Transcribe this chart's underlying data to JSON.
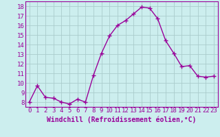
{
  "x": [
    0,
    1,
    2,
    3,
    4,
    5,
    6,
    7,
    8,
    9,
    10,
    11,
    12,
    13,
    14,
    15,
    16,
    17,
    18,
    19,
    20,
    21,
    22,
    23
  ],
  "y": [
    8.0,
    9.7,
    8.5,
    8.4,
    8.0,
    7.8,
    8.3,
    8.0,
    10.8,
    13.1,
    14.9,
    16.0,
    16.5,
    17.2,
    17.9,
    17.8,
    16.7,
    14.4,
    13.1,
    11.7,
    11.8,
    10.7,
    10.6,
    10.7
  ],
  "line_color": "#990099",
  "marker": "+",
  "markersize": 4,
  "linewidth": 1.0,
  "bg_color": "#cceeee",
  "grid_color": "#aacccc",
  "xlabel": "Windchill (Refroidissement éolien,°C)",
  "xlabel_fontsize": 7,
  "ylim": [
    7.5,
    18.5
  ],
  "yticks": [
    8,
    9,
    10,
    11,
    12,
    13,
    14,
    15,
    16,
    17,
    18
  ],
  "xticks": [
    0,
    1,
    2,
    3,
    4,
    5,
    6,
    7,
    8,
    9,
    10,
    11,
    12,
    13,
    14,
    15,
    16,
    17,
    18,
    19,
    20,
    21,
    22,
    23
  ],
  "tick_fontsize": 6.5
}
